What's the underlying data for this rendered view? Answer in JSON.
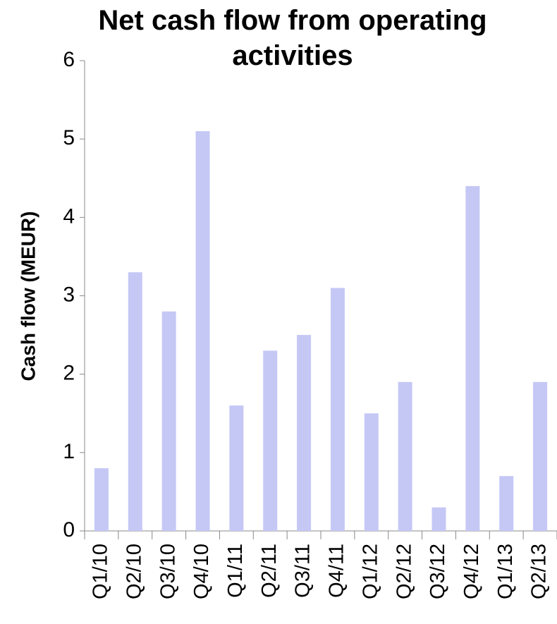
{
  "chart_data": {
    "type": "bar",
    "title": "Net cash flow from operating activities",
    "y_label": "Cash flow (MEUR)",
    "categories": [
      "Q1/10",
      "Q2/10",
      "Q3/10",
      "Q4/10",
      "Q1/11",
      "Q2/11",
      "Q3/11",
      "Q4/11",
      "Q1/12",
      "Q2/12",
      "Q3/12",
      "Q4/12",
      "Q1/13",
      "Q2/13"
    ],
    "values": [
      0.8,
      3.3,
      2.8,
      5.1,
      1.6,
      2.3,
      2.5,
      3.1,
      1.5,
      1.9,
      0.3,
      4.4,
      0.7,
      1.9
    ],
    "color": "#c5c8f5",
    "ylim": [
      0,
      6
    ],
    "yticks": [
      0,
      1,
      2,
      3,
      4,
      5,
      6
    ],
    "grid": false
  }
}
